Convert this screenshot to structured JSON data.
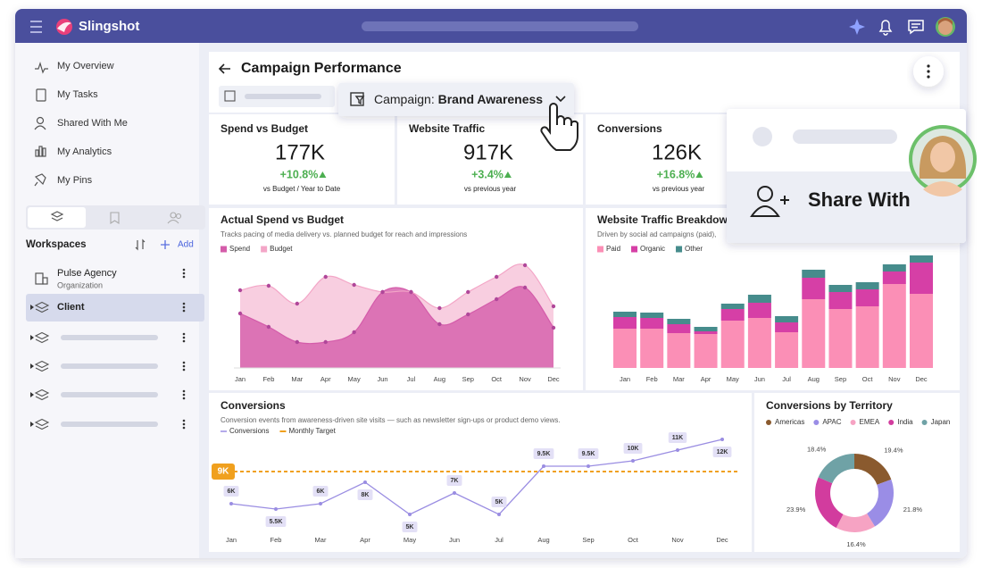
{
  "app": {
    "name": "Slingshot"
  },
  "sidebar": {
    "nav": [
      "My Overview",
      "My Tasks",
      "Shared With Me",
      "My Analytics",
      "My Pins"
    ],
    "workspaces_title": "Workspaces",
    "add": "Add",
    "workspaces": [
      {
        "name": "Pulse Agency",
        "subtitle": "Organization"
      },
      {
        "name": "Client"
      }
    ]
  },
  "dashboard": {
    "title": "Campaign Performance",
    "filter_label": "Campaign:",
    "filter_value": "Brand Awareness"
  },
  "kpis": [
    {
      "title": "Spend vs Budget",
      "value": "177K",
      "change": "+10.8%",
      "note": "vs Budget / Year to Date"
    },
    {
      "title": "Website Traffic",
      "value": "917K",
      "change": "+3.4%",
      "note": "vs previous year"
    },
    {
      "title": "Conversions",
      "value": "126K",
      "change": "+16.8%",
      "note": "vs previous year"
    }
  ],
  "share": {
    "label": "Share With"
  },
  "chart_data": [
    {
      "type": "area",
      "title": "Actual Spend vs Budget",
      "subtitle": "Tracks pacing of media delivery vs. planned budget for reach and impressions",
      "categories": [
        "Jan",
        "Feb",
        "Mar",
        "Apr",
        "May",
        "Jun",
        "Jul",
        "Aug",
        "Sep",
        "Oct",
        "Nov",
        "Dec"
      ],
      "series": [
        {
          "name": "Spend",
          "color": "#d45caa",
          "values": [
            61,
            46,
            29,
            29,
            40,
            85,
            85,
            49,
            60,
            77,
            90,
            45
          ]
        },
        {
          "name": "Budget",
          "color": "#f3a6c7",
          "values": [
            87,
            92,
            72,
            102,
            93,
            85,
            85,
            67,
            85,
            102,
            115,
            69
          ]
        }
      ],
      "ylim": [
        0,
        120
      ]
    },
    {
      "type": "stacked_bar",
      "title": "Website Traffic Breakdown",
      "subtitle": "Driven by social ad campaigns (paid),",
      "categories": [
        "Jan",
        "Feb",
        "Mar",
        "Apr",
        "May",
        "Jun",
        "Jul",
        "Aug",
        "Sep",
        "Oct",
        "Nov",
        "Dec"
      ],
      "series": [
        {
          "name": "Paid",
          "color": "#fb8fb6",
          "values": [
            44,
            44,
            39,
            38,
            53,
            56,
            40,
            77,
            66,
            69,
            94,
            83
          ]
        },
        {
          "name": "Organic",
          "color": "#d63fa6",
          "values": [
            13,
            12,
            10,
            3,
            13,
            17,
            11,
            24,
            19,
            19,
            14,
            35
          ]
        },
        {
          "name": "Other",
          "color": "#468c8c",
          "values": [
            6,
            6,
            6,
            5,
            6,
            9,
            7,
            9,
            8,
            8,
            8,
            8
          ]
        }
      ],
      "ylim": [
        0,
        130
      ]
    },
    {
      "type": "line",
      "title": "Conversions",
      "subtitle": "Conversion events from awareness-driven site visits — such as newsletter sign-ups or product demo views.",
      "categories": [
        "Jan",
        "Feb",
        "Mar",
        "Apr",
        "May",
        "Jun",
        "Jul",
        "Aug",
        "Sep",
        "Oct",
        "Nov",
        "Dec"
      ],
      "series": [
        {
          "name": "Conversions",
          "color": "#9a8de2",
          "values": [
            6000,
            5500,
            6000,
            8000,
            5000,
            7000,
            5000,
            9500,
            9500,
            10000,
            11000,
            12000
          ],
          "value_labels": [
            "6K",
            "5.5K",
            "6K",
            "8K",
            "5K",
            "7K",
            "5K",
            "9.5K",
            "9.5K",
            "10K",
            "11K",
            "12K"
          ]
        }
      ],
      "target": {
        "name": "Monthly Target",
        "value": 9000,
        "label": "9K",
        "color": "#f0a01e"
      },
      "ylim": [
        3000,
        13000
      ]
    },
    {
      "type": "donut",
      "title": "Conversions by Territory",
      "categories": [
        "Americas",
        "APAC",
        "EMEA",
        "India",
        "Japan"
      ],
      "colors": [
        "#8a5a2e",
        "#9a8de6",
        "#f6a3c3",
        "#d23c9e",
        "#6fa2a6"
      ],
      "values": [
        19.4,
        21.8,
        16.4,
        23.9,
        18.4
      ],
      "value_labels": [
        "19.4%",
        "21.8%",
        "16.4%",
        "23.9%",
        "18.4%"
      ]
    }
  ]
}
